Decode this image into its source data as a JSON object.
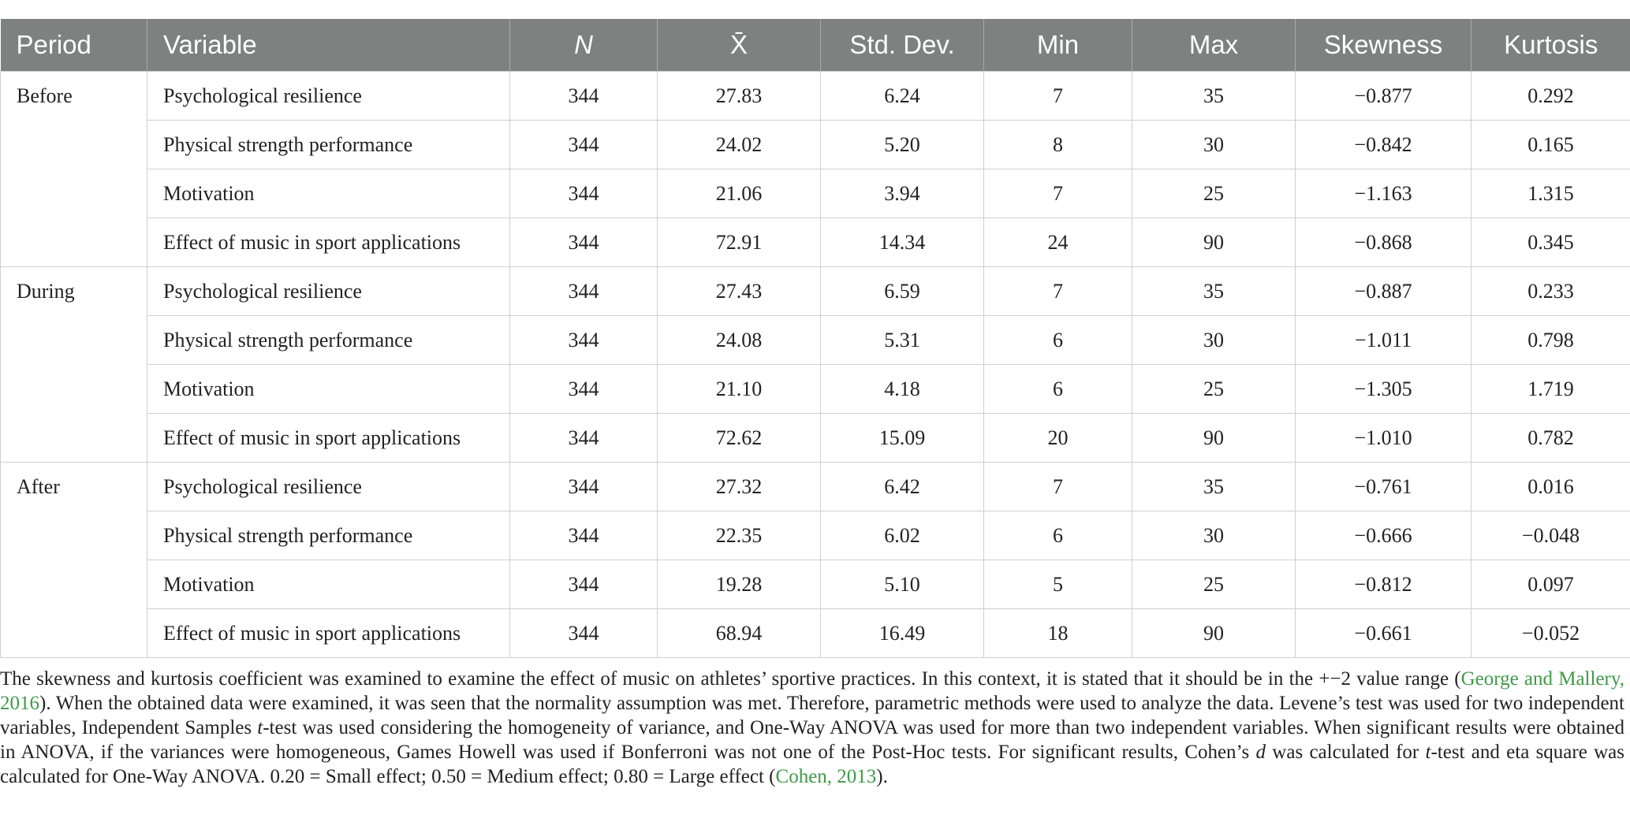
{
  "table": {
    "header": [
      "Period",
      "Variable",
      "N",
      "X̄",
      "Std. Dev.",
      "Min",
      "Max",
      "Skewness",
      "Kurtosis"
    ],
    "groups": [
      {
        "period": "Before",
        "rows": [
          [
            "Psychological resilience",
            "344",
            "27.83",
            "6.24",
            "7",
            "35",
            "−0.877",
            "0.292"
          ],
          [
            "Physical strength performance",
            "344",
            "24.02",
            "5.20",
            "8",
            "30",
            "−0.842",
            "0.165"
          ],
          [
            "Motivation",
            "344",
            "21.06",
            "3.94",
            "7",
            "25",
            "−1.163",
            "1.315"
          ],
          [
            "Effect of music in sport applications",
            "344",
            "72.91",
            "14.34",
            "24",
            "90",
            "−0.868",
            "0.345"
          ]
        ]
      },
      {
        "period": "During",
        "rows": [
          [
            "Psychological resilience",
            "344",
            "27.43",
            "6.59",
            "7",
            "35",
            "−0.887",
            "0.233"
          ],
          [
            "Physical strength performance",
            "344",
            "24.08",
            "5.31",
            "6",
            "30",
            "−1.011",
            "0.798"
          ],
          [
            "Motivation",
            "344",
            "21.10",
            "4.18",
            "6",
            "25",
            "−1.305",
            "1.719"
          ],
          [
            "Effect of music in sport applications",
            "344",
            "72.62",
            "15.09",
            "20",
            "90",
            "−1.010",
            "0.782"
          ]
        ]
      },
      {
        "period": "After",
        "rows": [
          [
            "Psychological resilience",
            "344",
            "27.32",
            "6.42",
            "7",
            "35",
            "−0.761",
            "0.016"
          ],
          [
            "Physical strength performance",
            "344",
            "22.35",
            "6.02",
            "6",
            "30",
            "−0.666",
            "−0.048"
          ],
          [
            "Motivation",
            "344",
            "19.28",
            "5.10",
            "5",
            "25",
            "−0.812",
            "0.097"
          ],
          [
            "Effect of music in sport applications",
            "344",
            "68.94",
            "16.49",
            "18",
            "90",
            "−0.661",
            "−0.052"
          ]
        ]
      }
    ]
  },
  "note": [
    "The skewness and kurtosis coefficient was examined to examine the effect of music on athletes’ sportive practices. In this context, it is stated that it should be in the +−2 value range (",
    "George and Mallery, 2016",
    "). When the obtained data were examined, it was seen that the normality assumption was met. Therefore, parametric methods were used to analyze the data. Levene’s test was used for two independent variables, Independent Samples ",
    "t",
    "-test was used considering the homogeneity of variance, and One-Way ANOVA was used for more than two independent variables. When significant results were obtained in ANOVA, if the variances were homogeneous, Games Howell was used if Bonferroni was not one of the Post-Hoc tests. For significant results, Cohen’s ",
    "d",
    " was calculated for ",
    "t",
    "-test and eta square was calculated for One-Way ANOVA. 0.20 = Small effect; 0.50 = Medium effect; 0.80 = Large effect (",
    "Cohen, 2013",
    ")."
  ]
}
